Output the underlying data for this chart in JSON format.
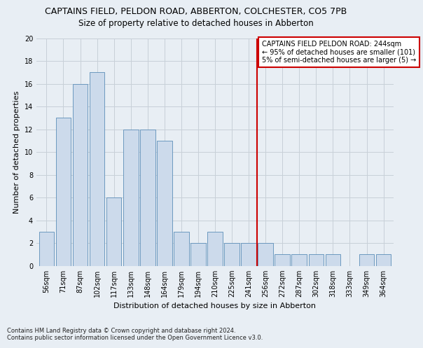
{
  "title": "CAPTAINS FIELD, PELDON ROAD, ABBERTON, COLCHESTER, CO5 7PB",
  "subtitle": "Size of property relative to detached houses in Abberton",
  "xlabel": "Distribution of detached houses by size in Abberton",
  "ylabel": "Number of detached properties",
  "categories": [
    "56sqm",
    "71sqm",
    "87sqm",
    "102sqm",
    "117sqm",
    "133sqm",
    "148sqm",
    "164sqm",
    "179sqm",
    "194sqm",
    "210sqm",
    "225sqm",
    "241sqm",
    "256sqm",
    "272sqm",
    "287sqm",
    "302sqm",
    "318sqm",
    "333sqm",
    "349sqm",
    "364sqm"
  ],
  "values": [
    3,
    13,
    16,
    17,
    6,
    12,
    12,
    11,
    3,
    2,
    3,
    2,
    2,
    2,
    1,
    1,
    1,
    1,
    0,
    1,
    1
  ],
  "bar_color": "#ccdaeb",
  "bar_edge_color": "#5b8db8",
  "reference_line_x": 12.5,
  "reference_line_color": "#cc0000",
  "annotation_box_text": "CAPTAINS FIELD PELDON ROAD: 244sqm\n← 95% of detached houses are smaller (101)\n5% of semi-detached houses are larger (5) →",
  "annotation_box_color": "#cc0000",
  "ylim": [
    0,
    20
  ],
  "yticks": [
    0,
    2,
    4,
    6,
    8,
    10,
    12,
    14,
    16,
    18,
    20
  ],
  "footer_text": "Contains HM Land Registry data © Crown copyright and database right 2024.\nContains public sector information licensed under the Open Government Licence v3.0.",
  "background_color": "#e8eef4",
  "grid_color": "#c8d0d8",
  "title_fontsize": 9,
  "subtitle_fontsize": 8.5,
  "axis_label_fontsize": 8,
  "tick_fontsize": 7,
  "annotation_fontsize": 7,
  "footer_fontsize": 6
}
